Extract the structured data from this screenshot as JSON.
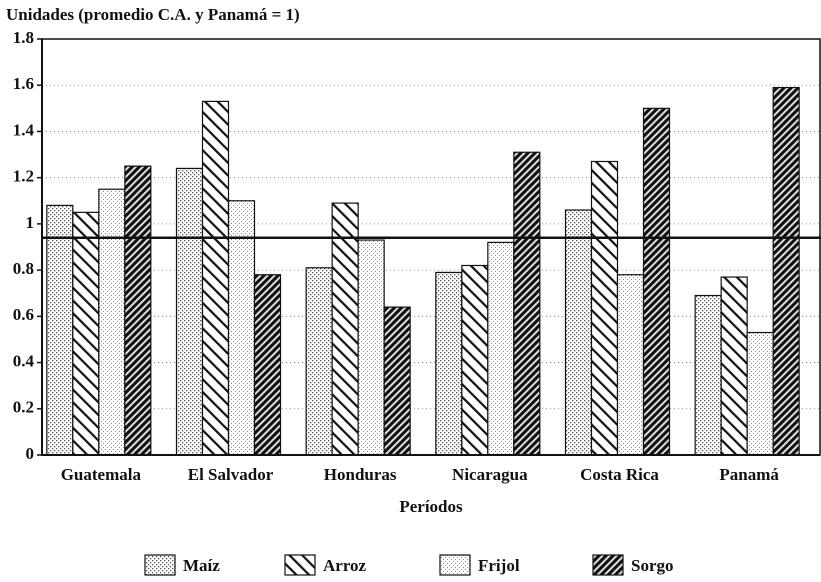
{
  "chart_data": {
    "type": "bar",
    "title": "Unidades (promedio C.A. y Panamá = 1)",
    "x_label": "Períodos",
    "categories": [
      "Guatemala",
      "El Salvador",
      "Honduras",
      "Nicaragua",
      "Costa Rica",
      "Panamá"
    ],
    "series": [
      {
        "name": "Maíz",
        "pattern": "dots",
        "values": [
          1.08,
          1.24,
          0.81,
          0.79,
          1.06,
          0.69
        ]
      },
      {
        "name": "Arroz",
        "pattern": "back-hatch",
        "values": [
          1.05,
          1.53,
          1.09,
          0.82,
          1.27,
          0.77
        ]
      },
      {
        "name": "Frijol",
        "pattern": "light-dots",
        "values": [
          1.15,
          1.1,
          0.93,
          0.92,
          0.78,
          0.53
        ]
      },
      {
        "name": "Sorgo",
        "pattern": "dense-hatch",
        "values": [
          1.25,
          0.78,
          0.64,
          1.31,
          1.5,
          1.59
        ]
      }
    ],
    "reference_line": 0.94,
    "ylim": [
      0,
      1.8
    ],
    "yticks": [
      0,
      0.2,
      0.4,
      0.6,
      0.8,
      1,
      1.2,
      1.4,
      1.6,
      1.8
    ],
    "grid": true,
    "legend": "bottom"
  }
}
